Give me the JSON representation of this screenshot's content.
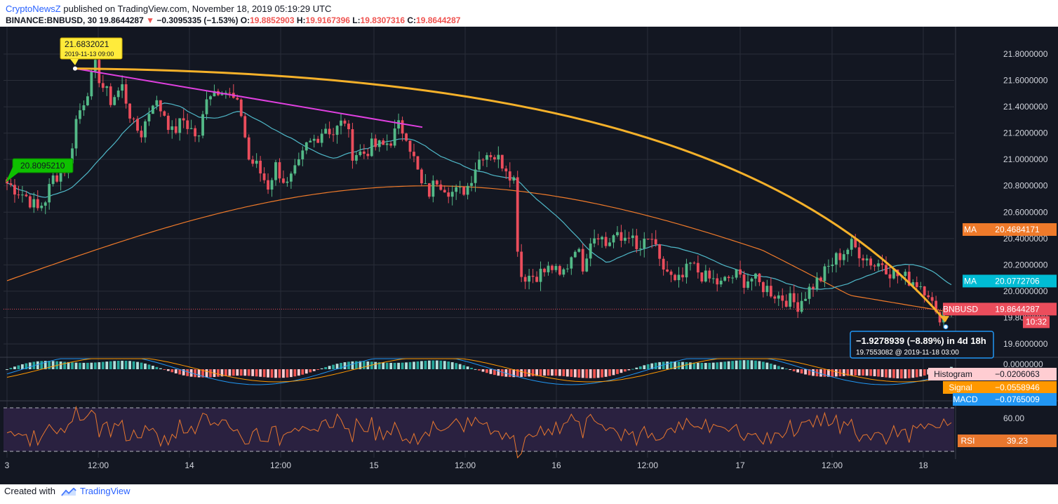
{
  "header": {
    "author": "CryptoNewsZ",
    "published_text": "published on TradingView.com, November 18, 2019 05:19:29 UTC",
    "symbol": "BINANCE:BNBUSD, 30",
    "last_price": "19.8644287",
    "change_arrow": "▼",
    "change": "−0.3095335 (−1.53%)",
    "o_label": "O:",
    "o_value": "19.8852903",
    "h_label": "H:",
    "h_value": "19.9167396",
    "l_label": "L:",
    "l_value": "19.8307316",
    "c_label": "C:",
    "c_value": "19.8644287"
  },
  "footer": {
    "created_with": "Created with",
    "brand": "TradingView"
  },
  "colors": {
    "background": "#131722",
    "grid": "#2a2e39",
    "up": "#53b987",
    "down": "#eb4d5c",
    "ma_fast": "#4fb8c8",
    "ma_slow": "#ef7a2a",
    "trend_magenta": "#e040e0",
    "arc_orange": "#f5b12a",
    "rsi_line": "#e8772e",
    "rsi_band": "#2a2140",
    "macd_line": "#2196f3",
    "signal_line": "#ff9800"
  },
  "chart_data": {
    "type": "candlestick",
    "symbol": "BINANCE:BNBUSD",
    "interval": "30",
    "y_axis": {
      "min": 19.6,
      "max": 21.8,
      "ticks": [
        "21.8000000",
        "21.6000000",
        "21.4000000",
        "21.2000000",
        "21.0000000",
        "20.8000000",
        "20.6000000",
        "20.4000000",
        "20.2000000",
        "20.0000000",
        "19.8000000",
        "19.6000000"
      ]
    },
    "x_axis": {
      "ticks": [
        "3",
        "12:00",
        "14",
        "12:00",
        "15",
        "12:00",
        "16",
        "12:00",
        "17",
        "12:00",
        "18"
      ]
    },
    "price_anchors": [
      [
        0,
        20.82
      ],
      [
        5,
        20.72
      ],
      [
        8,
        20.62
      ],
      [
        10,
        20.7
      ],
      [
        12,
        20.86
      ],
      [
        16,
        20.95
      ],
      [
        18,
        21.3
      ],
      [
        20,
        21.45
      ],
      [
        23,
        21.7
      ],
      [
        25,
        21.55
      ],
      [
        27,
        21.45
      ],
      [
        30,
        21.55
      ],
      [
        33,
        21.25
      ],
      [
        35,
        21.2
      ],
      [
        38,
        21.45
      ],
      [
        41,
        21.35
      ],
      [
        43,
        21.2
      ],
      [
        46,
        21.3
      ],
      [
        50,
        21.15
      ],
      [
        52,
        21.5
      ],
      [
        56,
        21.55
      ],
      [
        59,
        21.45
      ],
      [
        61,
        21.35
      ],
      [
        63,
        21.0
      ],
      [
        65,
        20.95
      ],
      [
        68,
        20.8
      ],
      [
        70,
        20.95
      ],
      [
        73,
        20.8
      ],
      [
        76,
        20.95
      ],
      [
        78,
        21.1
      ],
      [
        80,
        21.15
      ],
      [
        83,
        21.25
      ],
      [
        85,
        21.2
      ],
      [
        88,
        21.3
      ],
      [
        90,
        21.05
      ],
      [
        93,
        21.05
      ],
      [
        95,
        21.1
      ],
      [
        98,
        21.1
      ],
      [
        100,
        21.15
      ],
      [
        102,
        21.25
      ],
      [
        104,
        21.2
      ],
      [
        106,
        21.0
      ],
      [
        108,
        20.8
      ],
      [
        110,
        20.75
      ],
      [
        112,
        20.85
      ],
      [
        114,
        20.8
      ],
      [
        116,
        20.75
      ],
      [
        118,
        20.75
      ],
      [
        120,
        20.8
      ],
      [
        122,
        20.95
      ],
      [
        124,
        21.05
      ],
      [
        126,
        21.05
      ],
      [
        128,
        21.0
      ],
      [
        130,
        20.95
      ],
      [
        132,
        20.85
      ],
      [
        133,
        20.35
      ],
      [
        134,
        20.12
      ],
      [
        137,
        20.12
      ],
      [
        140,
        20.15
      ],
      [
        142,
        20.18
      ],
      [
        144,
        20.1
      ],
      [
        146,
        20.2
      ],
      [
        148,
        20.35
      ],
      [
        150,
        20.2
      ],
      [
        152,
        20.4
      ],
      [
        154,
        20.45
      ],
      [
        156,
        20.35
      ],
      [
        158,
        20.42
      ],
      [
        160,
        20.38
      ],
      [
        162,
        20.45
      ],
      [
        164,
        20.3
      ],
      [
        166,
        20.35
      ],
      [
        168,
        20.4
      ],
      [
        170,
        20.2
      ],
      [
        172,
        20.15
      ],
      [
        174,
        20.05
      ],
      [
        176,
        20.1
      ],
      [
        178,
        20.2
      ],
      [
        180,
        20.15
      ],
      [
        182,
        20.1
      ],
      [
        184,
        20.08
      ],
      [
        186,
        20.05
      ],
      [
        188,
        20.1
      ],
      [
        190,
        20.12
      ],
      [
        192,
        20.08
      ],
      [
        194,
        20.1
      ],
      [
        196,
        20.05
      ],
      [
        198,
        20.02
      ],
      [
        200,
        19.98
      ],
      [
        202,
        19.95
      ],
      [
        204,
        19.93
      ],
      [
        206,
        19.9
      ],
      [
        208,
        19.98
      ],
      [
        210,
        20.05
      ],
      [
        212,
        20.1
      ],
      [
        214,
        20.18
      ],
      [
        216,
        20.25
      ],
      [
        218,
        20.3
      ],
      [
        220,
        20.35
      ],
      [
        222,
        20.3
      ],
      [
        224,
        20.25
      ],
      [
        226,
        20.2
      ],
      [
        228,
        20.22
      ],
      [
        230,
        20.15
      ],
      [
        232,
        20.12
      ],
      [
        234,
        20.1
      ],
      [
        236,
        20.08
      ],
      [
        238,
        20.05
      ],
      [
        240,
        20.0
      ],
      [
        242,
        19.8
      ],
      [
        244,
        19.84
      ],
      [
        246,
        19.86
      ]
    ],
    "candle_count": 247,
    "moving_averages": [
      {
        "name": "MA",
        "value": "20.4684171"
      },
      {
        "name": "MA",
        "value": "20.0772706"
      }
    ],
    "symbol_label": {
      "name": "BNBUSD",
      "value": "19.8644287",
      "countdown": "10:32"
    },
    "annotations": {
      "high_label": {
        "value": "21.6832021",
        "date": "2019-11-13 09:00"
      },
      "start_label": {
        "value": "20.8095210"
      },
      "measure": {
        "line1": "−1.9278939 (−8.89%) in 4d 18h",
        "line2": "19.7553082 @ 2019-11-18  03:00"
      }
    },
    "macd": {
      "histogram_label": "Histogram",
      "histogram_value": "−0.0206063",
      "signal_label": "Signal",
      "signal_value": "−0.0558946",
      "macd_label": "MACD",
      "macd_value": "−0.0765009",
      "top_tick": "0.0000000"
    },
    "rsi": {
      "label": "RSI",
      "value": "39.23",
      "tick": "60.00",
      "band": [
        30,
        70
      ]
    }
  }
}
